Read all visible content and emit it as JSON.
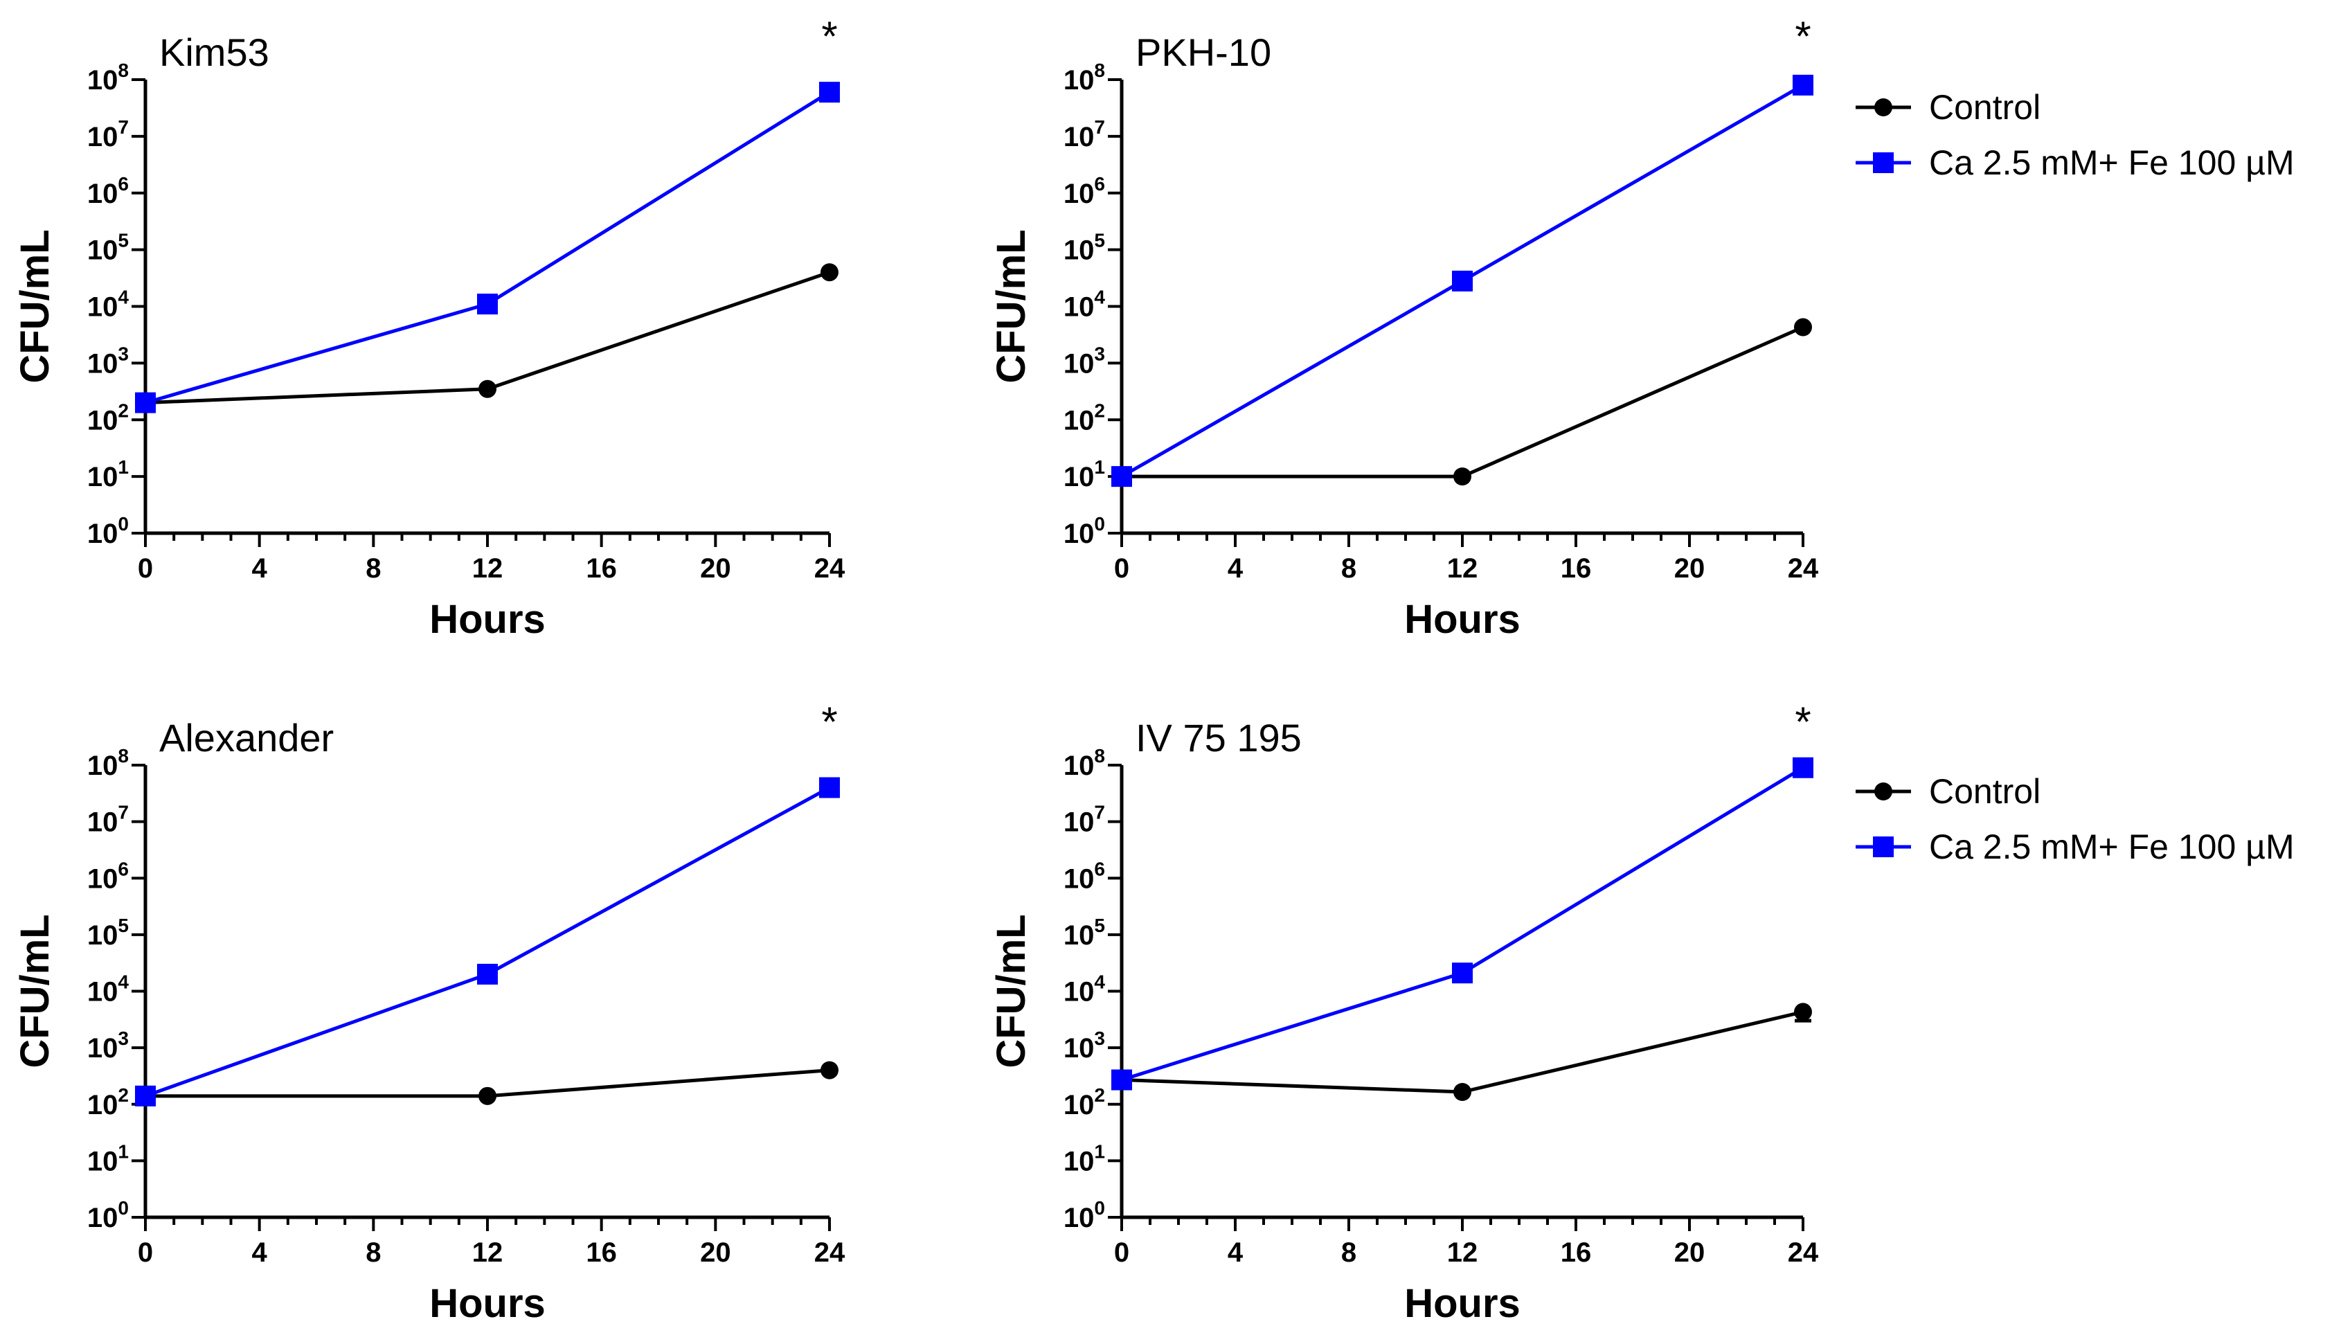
{
  "chart_data": [
    {
      "type": "line",
      "title": "Kim53",
      "xlabel": "Hours",
      "ylabel": "CFU/mL",
      "yscale": "log",
      "xlim": [
        0,
        24
      ],
      "ylim": [
        1,
        100000000
      ],
      "xticks": [
        0,
        4,
        8,
        12,
        16,
        20,
        24
      ],
      "yticks": [
        {
          "base": "10",
          "exp": "0"
        },
        {
          "base": "10",
          "exp": "1"
        },
        {
          "base": "10",
          "exp": "2"
        },
        {
          "base": "10",
          "exp": "3"
        },
        {
          "base": "10",
          "exp": "4"
        },
        {
          "base": "10",
          "exp": "5"
        },
        {
          "base": "10",
          "exp": "6"
        },
        {
          "base": "10",
          "exp": "7"
        },
        {
          "base": "10",
          "exp": "8"
        }
      ],
      "annotation": {
        "text": "*",
        "x": 24
      },
      "legend": false,
      "series": [
        {
          "name": "Control",
          "color": "#000000",
          "marker": "circle",
          "x": [
            0,
            12,
            24
          ],
          "y": [
            200,
            350,
            40000
          ]
        },
        {
          "name": "Ca 2.5 mM+ Fe 100 µM",
          "color": "#0000ff",
          "marker": "square",
          "x": [
            0,
            12,
            24
          ],
          "y": [
            200,
            11000,
            60000000
          ]
        }
      ]
    },
    {
      "type": "line",
      "title": "PKH-10",
      "xlabel": "Hours",
      "ylabel": "CFU/mL",
      "yscale": "log",
      "xlim": [
        0,
        24
      ],
      "ylim": [
        1,
        100000000
      ],
      "xticks": [
        0,
        4,
        8,
        12,
        16,
        20,
        24
      ],
      "yticks": [
        {
          "base": "10",
          "exp": "0"
        },
        {
          "base": "10",
          "exp": "1"
        },
        {
          "base": "10",
          "exp": "2"
        },
        {
          "base": "10",
          "exp": "3"
        },
        {
          "base": "10",
          "exp": "4"
        },
        {
          "base": "10",
          "exp": "5"
        },
        {
          "base": "10",
          "exp": "6"
        },
        {
          "base": "10",
          "exp": "7"
        },
        {
          "base": "10",
          "exp": "8"
        }
      ],
      "annotation": {
        "text": "*",
        "x": 24
      },
      "legend": true,
      "series": [
        {
          "name": "Control",
          "color": "#000000",
          "marker": "circle",
          "x": [
            0,
            12,
            24
          ],
          "y": [
            10,
            10,
            4300
          ]
        },
        {
          "name": "Ca 2.5 mM+ Fe 100 µM",
          "color": "#0000ff",
          "marker": "square",
          "x": [
            0,
            12,
            24
          ],
          "y": [
            10,
            28000,
            80000000
          ]
        }
      ]
    },
    {
      "type": "line",
      "title": "Alexander",
      "xlabel": "Hours",
      "ylabel": "CFU/mL",
      "yscale": "log",
      "xlim": [
        0,
        24
      ],
      "ylim": [
        1,
        100000000
      ],
      "xticks": [
        0,
        4,
        8,
        12,
        16,
        20,
        24
      ],
      "yticks": [
        {
          "base": "10",
          "exp": "0"
        },
        {
          "base": "10",
          "exp": "1"
        },
        {
          "base": "10",
          "exp": "2"
        },
        {
          "base": "10",
          "exp": "3"
        },
        {
          "base": "10",
          "exp": "4"
        },
        {
          "base": "10",
          "exp": "5"
        },
        {
          "base": "10",
          "exp": "6"
        },
        {
          "base": "10",
          "exp": "7"
        },
        {
          "base": "10",
          "exp": "8"
        }
      ],
      "annotation": {
        "text": "*",
        "x": 24
      },
      "legend": false,
      "series": [
        {
          "name": "Control",
          "color": "#000000",
          "marker": "circle",
          "x": [
            0,
            12,
            24
          ],
          "y": [
            140,
            140,
            400
          ]
        },
        {
          "name": "Ca 2.5 mM+ Fe 100 µM",
          "color": "#0000ff",
          "marker": "square",
          "x": [
            0,
            12,
            24
          ],
          "y": [
            140,
            20000,
            40000000
          ]
        }
      ]
    },
    {
      "type": "line",
      "title": "IV 75 195",
      "xlabel": "Hours",
      "ylabel": "CFU/mL",
      "yscale": "log",
      "xlim": [
        0,
        24
      ],
      "ylim": [
        1,
        100000000
      ],
      "xticks": [
        0,
        4,
        8,
        12,
        16,
        20,
        24
      ],
      "yticks": [
        {
          "base": "10",
          "exp": "0"
        },
        {
          "base": "10",
          "exp": "1"
        },
        {
          "base": "10",
          "exp": "2"
        },
        {
          "base": "10",
          "exp": "3"
        },
        {
          "base": "10",
          "exp": "4"
        },
        {
          "base": "10",
          "exp": "5"
        },
        {
          "base": "10",
          "exp": "6"
        },
        {
          "base": "10",
          "exp": "7"
        },
        {
          "base": "10",
          "exp": "8"
        }
      ],
      "annotation": {
        "text": "*",
        "x": 24
      },
      "legend": true,
      "series": [
        {
          "name": "Control",
          "color": "#000000",
          "marker": "circle",
          "x": [
            0,
            12,
            24
          ],
          "y": [
            270,
            165,
            4300
          ],
          "yerr_low": [
            0,
            0,
            1300
          ]
        },
        {
          "name": "Ca 2.5 mM+ Fe 100 µM",
          "color": "#0000ff",
          "marker": "square",
          "x": [
            0,
            12,
            24
          ],
          "y": [
            270,
            21000,
            90000000
          ]
        }
      ]
    }
  ]
}
